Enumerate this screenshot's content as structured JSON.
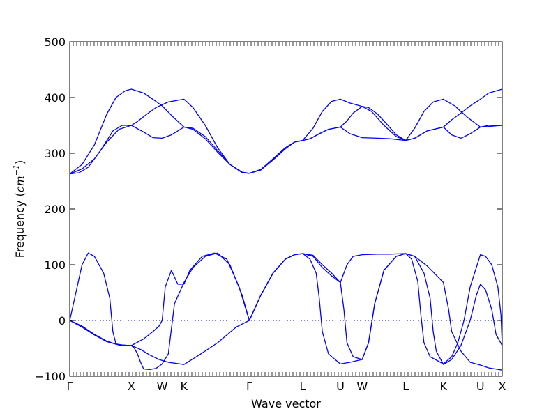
{
  "chart_data": {
    "type": "line",
    "title": "",
    "xlabel": "Wave vector",
    "ylabel_text": "Frequency (",
    "ylabel_math": "cm",
    "ylabel_exp": "−1",
    "ylabel_close": ")",
    "ylim": [
      -100,
      500
    ],
    "yticks": [
      -100,
      0,
      100,
      200,
      300,
      400,
      500
    ],
    "xticks": [
      {
        "label": "Γ",
        "x": 0
      },
      {
        "label": "X",
        "x": 1
      },
      {
        "label": "W",
        "x": 1.5
      },
      {
        "label": "K",
        "x": 1.854
      },
      {
        "label": "Γ",
        "x": 2.915
      },
      {
        "label": "L",
        "x": 3.781
      },
      {
        "label": "U",
        "x": 4.393
      },
      {
        "label": "W",
        "x": 4.747
      },
      {
        "label": "L",
        "x": 5.454
      },
      {
        "label": "K",
        "x": 6.066
      },
      {
        "label": "U",
        "x": 6.666
      },
      {
        "label": "X",
        "x": 7.02
      }
    ],
    "xlim": [
      0,
      7.02
    ],
    "zero_line": true,
    "line_color": "#0000ff",
    "series": [
      {
        "points": [
          [
            0,
            263
          ],
          [
            0.15,
            265
          ],
          [
            0.3,
            275
          ],
          [
            0.5,
            305
          ],
          [
            0.7,
            340
          ],
          [
            0.85,
            350
          ],
          [
            1.0,
            350
          ],
          [
            1.1,
            357
          ],
          [
            1.25,
            370
          ],
          [
            1.4,
            382
          ],
          [
            1.6,
            392
          ],
          [
            1.854,
            397
          ],
          [
            2.0,
            382
          ],
          [
            2.2,
            350
          ],
          [
            2.4,
            310
          ],
          [
            2.6,
            280
          ],
          [
            2.8,
            266
          ],
          [
            2.915,
            264
          ],
          [
            3.1,
            270
          ],
          [
            3.3,
            288
          ],
          [
            3.5,
            308
          ],
          [
            3.65,
            320
          ],
          [
            3.781,
            323
          ],
          [
            3.9,
            326
          ],
          [
            4.05,
            335
          ],
          [
            4.2,
            343
          ],
          [
            4.393,
            347
          ],
          [
            4.5,
            358
          ],
          [
            4.6,
            372
          ],
          [
            4.747,
            384
          ],
          [
            4.85,
            382
          ],
          [
            5.0,
            370
          ],
          [
            5.15,
            352
          ],
          [
            5.3,
            333
          ],
          [
            5.454,
            323
          ],
          [
            5.6,
            327
          ],
          [
            5.8,
            340
          ],
          [
            6.066,
            347
          ],
          [
            6.2,
            360
          ],
          [
            6.35,
            372
          ],
          [
            6.5,
            385
          ],
          [
            6.666,
            397
          ],
          [
            6.8,
            408
          ],
          [
            7.02,
            415
          ]
        ]
      },
      {
        "points": [
          [
            0,
            263
          ],
          [
            0.2,
            280
          ],
          [
            0.4,
            315
          ],
          [
            0.6,
            370
          ],
          [
            0.75,
            400
          ],
          [
            0.9,
            412
          ],
          [
            1.0,
            415
          ],
          [
            1.2,
            408
          ],
          [
            1.4,
            393
          ],
          [
            1.5,
            385
          ],
          [
            1.65,
            368
          ],
          [
            1.854,
            347
          ],
          [
            2.0,
            345
          ],
          [
            2.2,
            330
          ],
          [
            2.4,
            305
          ],
          [
            2.6,
            280
          ],
          [
            2.8,
            265
          ],
          [
            2.915,
            264
          ],
          [
            3.1,
            270
          ],
          [
            3.3,
            290
          ],
          [
            3.5,
            310
          ],
          [
            3.65,
            320
          ],
          [
            3.781,
            323
          ],
          [
            3.95,
            345
          ],
          [
            4.1,
            375
          ],
          [
            4.25,
            393
          ],
          [
            4.393,
            397
          ],
          [
            4.55,
            390
          ],
          [
            4.747,
            384
          ],
          [
            4.9,
            375
          ],
          [
            5.1,
            350
          ],
          [
            5.3,
            330
          ],
          [
            5.454,
            323
          ],
          [
            5.6,
            345
          ],
          [
            5.75,
            375
          ],
          [
            5.9,
            392
          ],
          [
            6.066,
            397
          ],
          [
            6.25,
            385
          ],
          [
            6.45,
            365
          ],
          [
            6.666,
            347
          ],
          [
            6.8,
            348
          ],
          [
            7.02,
            350
          ]
        ]
      },
      {
        "points": [
          [
            0,
            263
          ],
          [
            0.2,
            272
          ],
          [
            0.4,
            290
          ],
          [
            0.6,
            320
          ],
          [
            0.8,
            343
          ],
          [
            1.0,
            350
          ],
          [
            1.2,
            338
          ],
          [
            1.35,
            328
          ],
          [
            1.5,
            327
          ],
          [
            1.65,
            333
          ],
          [
            1.854,
            347
          ],
          [
            2.0,
            343
          ],
          [
            2.2,
            326
          ],
          [
            2.4,
            302
          ],
          [
            2.6,
            280
          ],
          [
            2.8,
            266
          ],
          [
            2.915,
            264
          ],
          [
            3.1,
            271
          ],
          [
            3.3,
            290
          ],
          [
            3.5,
            310
          ],
          [
            3.65,
            320
          ],
          [
            3.781,
            323
          ],
          [
            3.9,
            326
          ],
          [
            4.05,
            335
          ],
          [
            4.2,
            343
          ],
          [
            4.393,
            347
          ],
          [
            4.55,
            335
          ],
          [
            4.747,
            328
          ],
          [
            5.0,
            327
          ],
          [
            5.2,
            326
          ],
          [
            5.454,
            323
          ],
          [
            5.6,
            327
          ],
          [
            5.8,
            340
          ],
          [
            6.066,
            347
          ],
          [
            6.2,
            333
          ],
          [
            6.35,
            327
          ],
          [
            6.5,
            335
          ],
          [
            6.666,
            347
          ],
          [
            6.8,
            350
          ],
          [
            7.02,
            350
          ]
        ]
      },
      {
        "points": [
          [
            0,
            0
          ],
          [
            0.08,
            40
          ],
          [
            0.2,
            100
          ],
          [
            0.3,
            121
          ],
          [
            0.4,
            115
          ],
          [
            0.55,
            85
          ],
          [
            0.65,
            40
          ],
          [
            0.7,
            -20
          ],
          [
            0.75,
            -42
          ],
          [
            0.85,
            -44
          ],
          [
            1.0,
            -45
          ],
          [
            1.15,
            -52
          ],
          [
            1.3,
            -62
          ],
          [
            1.45,
            -70
          ],
          [
            1.6,
            -75
          ],
          [
            1.854,
            -79
          ],
          [
            2.1,
            -62
          ],
          [
            2.4,
            -40
          ],
          [
            2.7,
            -12
          ],
          [
            2.915,
            0
          ],
          [
            3.1,
            45
          ],
          [
            3.3,
            85
          ],
          [
            3.5,
            110
          ],
          [
            3.65,
            118
          ],
          [
            3.781,
            120
          ],
          [
            3.95,
            117
          ],
          [
            4.1,
            100
          ],
          [
            4.25,
            85
          ],
          [
            4.393,
            68
          ],
          [
            4.45,
            20
          ],
          [
            4.5,
            -40
          ],
          [
            4.6,
            -65
          ],
          [
            4.747,
            -70
          ],
          [
            4.85,
            -40
          ],
          [
            4.95,
            30
          ],
          [
            5.1,
            90
          ],
          [
            5.3,
            115
          ],
          [
            5.454,
            120
          ],
          [
            5.6,
            115
          ],
          [
            5.75,
            85
          ],
          [
            5.85,
            40
          ],
          [
            5.9,
            -20
          ],
          [
            5.95,
            -55
          ],
          [
            6.066,
            -79
          ],
          [
            6.2,
            -70
          ],
          [
            6.35,
            -45
          ],
          [
            6.5,
            0
          ],
          [
            6.6,
            45
          ],
          [
            6.666,
            65
          ],
          [
            6.75,
            55
          ],
          [
            6.85,
            20
          ],
          [
            6.92,
            -25
          ],
          [
            7.02,
            -45
          ]
        ]
      },
      {
        "points": [
          [
            0,
            0
          ],
          [
            0.2,
            -10
          ],
          [
            0.4,
            -25
          ],
          [
            0.6,
            -37
          ],
          [
            0.8,
            -44
          ],
          [
            1.0,
            -45
          ],
          [
            1.2,
            -33
          ],
          [
            1.35,
            -20
          ],
          [
            1.45,
            -10
          ],
          [
            1.5,
            0
          ],
          [
            1.55,
            60
          ],
          [
            1.65,
            90
          ],
          [
            1.754,
            65
          ],
          [
            1.854,
            65
          ],
          [
            1.95,
            90
          ],
          [
            2.15,
            115
          ],
          [
            2.35,
            121
          ],
          [
            2.55,
            110
          ],
          [
            2.75,
            60
          ],
          [
            2.915,
            0
          ],
          [
            3.1,
            45
          ],
          [
            3.3,
            85
          ],
          [
            3.5,
            110
          ],
          [
            3.65,
            118
          ],
          [
            3.781,
            120
          ],
          [
            3.95,
            115
          ],
          [
            4.1,
            95
          ],
          [
            4.25,
            80
          ],
          [
            4.393,
            68
          ],
          [
            4.5,
            100
          ],
          [
            4.6,
            115
          ],
          [
            4.747,
            118
          ],
          [
            5.0,
            119
          ],
          [
            5.2,
            119
          ],
          [
            5.454,
            120
          ],
          [
            5.6,
            115
          ],
          [
            5.8,
            98
          ],
          [
            6.066,
            68
          ],
          [
            6.15,
            20
          ],
          [
            6.2,
            -20
          ],
          [
            6.35,
            -55
          ],
          [
            6.5,
            -75
          ],
          [
            6.666,
            -80
          ],
          [
            6.8,
            -85
          ],
          [
            7.02,
            -89
          ]
        ]
      },
      {
        "points": [
          [
            0,
            0
          ],
          [
            0.2,
            -12
          ],
          [
            0.4,
            -26
          ],
          [
            0.6,
            -38
          ],
          [
            0.8,
            -44
          ],
          [
            1.0,
            -45
          ],
          [
            1.05,
            -50
          ],
          [
            1.1,
            -60
          ],
          [
            1.15,
            -75
          ],
          [
            1.2,
            -87
          ],
          [
            1.3,
            -88
          ],
          [
            1.4,
            -86
          ],
          [
            1.5,
            -78
          ],
          [
            1.6,
            -60
          ],
          [
            1.65,
            -15
          ],
          [
            1.7,
            30
          ],
          [
            1.854,
            68
          ],
          [
            2.0,
            95
          ],
          [
            2.2,
            115
          ],
          [
            2.4,
            121
          ],
          [
            2.6,
            100
          ],
          [
            2.8,
            45
          ],
          [
            2.915,
            0
          ],
          [
            3.1,
            45
          ],
          [
            3.3,
            85
          ],
          [
            3.5,
            110
          ],
          [
            3.65,
            118
          ],
          [
            3.781,
            120
          ],
          [
            3.9,
            110
          ],
          [
            4.0,
            85
          ],
          [
            4.05,
            40
          ],
          [
            4.1,
            -20
          ],
          [
            4.2,
            -60
          ],
          [
            4.393,
            -78
          ],
          [
            4.55,
            -75
          ],
          [
            4.747,
            -70
          ],
          [
            4.85,
            -40
          ],
          [
            4.95,
            30
          ],
          [
            5.1,
            90
          ],
          [
            5.3,
            115
          ],
          [
            5.454,
            120
          ],
          [
            5.55,
            110
          ],
          [
            5.65,
            70
          ],
          [
            5.7,
            10
          ],
          [
            5.75,
            -40
          ],
          [
            5.85,
            -65
          ],
          [
            6.066,
            -78
          ],
          [
            6.2,
            -65
          ],
          [
            6.3,
            -40
          ],
          [
            6.4,
            0
          ],
          [
            6.5,
            60
          ],
          [
            6.666,
            118
          ],
          [
            6.75,
            115
          ],
          [
            6.85,
            100
          ],
          [
            6.95,
            60
          ],
          [
            7.0,
            10
          ],
          [
            7.02,
            -45
          ]
        ]
      }
    ]
  }
}
